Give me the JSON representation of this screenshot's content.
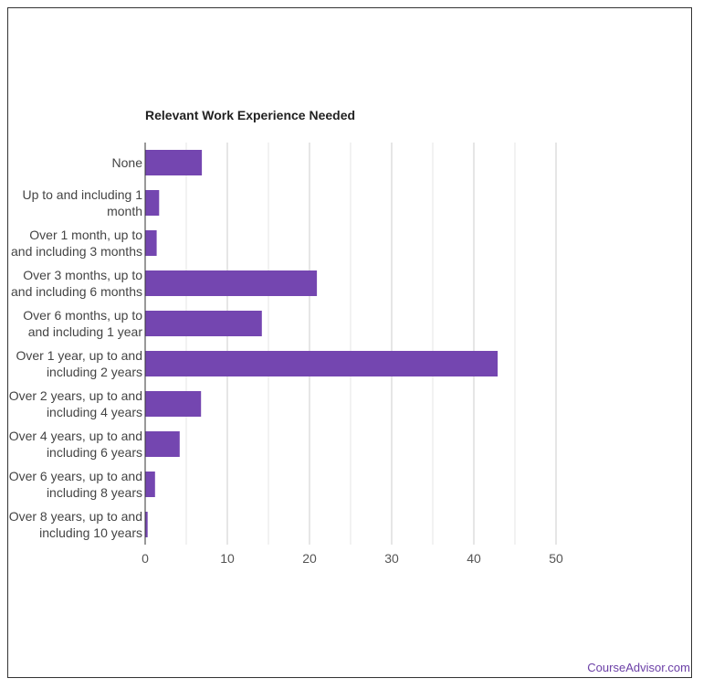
{
  "chart_data": {
    "type": "bar",
    "orientation": "horizontal",
    "title": "Relevant Work Experience Needed",
    "xlabel": "",
    "ylabel": "",
    "categories": [
      "None",
      "Up to and including 1 month",
      "Over 1 month, up to and including 3 months",
      "Over 3 months, up to and including 6 months",
      "Over 6 months, up to and including 1 year",
      "Over 1 year, up to and including 2 years",
      "Over 2 years, up to and including 4 years",
      "Over 4 years, up to and including 6 years",
      "Over 6 years, up to and including 8 years",
      "Over 8 years, up to and including 10 years"
    ],
    "label_lines": [
      [
        "None"
      ],
      [
        "Up to and including 1",
        "month"
      ],
      [
        "Over 1 month, up to",
        "and including 3 months"
      ],
      [
        "Over 3 months, up to",
        "and including 6 months"
      ],
      [
        "Over 6 months, up to",
        "and including 1 year"
      ],
      [
        "Over 1 year, up to and",
        "including 2 years"
      ],
      [
        "Over 2 years, up to and",
        "including 4 years"
      ],
      [
        "Over 4 years, up to and",
        "including 6 years"
      ],
      [
        "Over 6 years, up to and",
        "including 8 years"
      ],
      [
        "Over 8 years, up to and",
        "including 10 years"
      ]
    ],
    "values": [
      6.9,
      1.7,
      1.4,
      20.9,
      14.2,
      42.9,
      6.8,
      4.2,
      1.2,
      0.3
    ],
    "xlim": [
      0,
      50
    ],
    "ticks": [
      0,
      10,
      20,
      30,
      40,
      50
    ],
    "grid": true,
    "legend": "none",
    "bar_color": "#7446b0"
  },
  "watermark": "CourseAdvisor.com"
}
